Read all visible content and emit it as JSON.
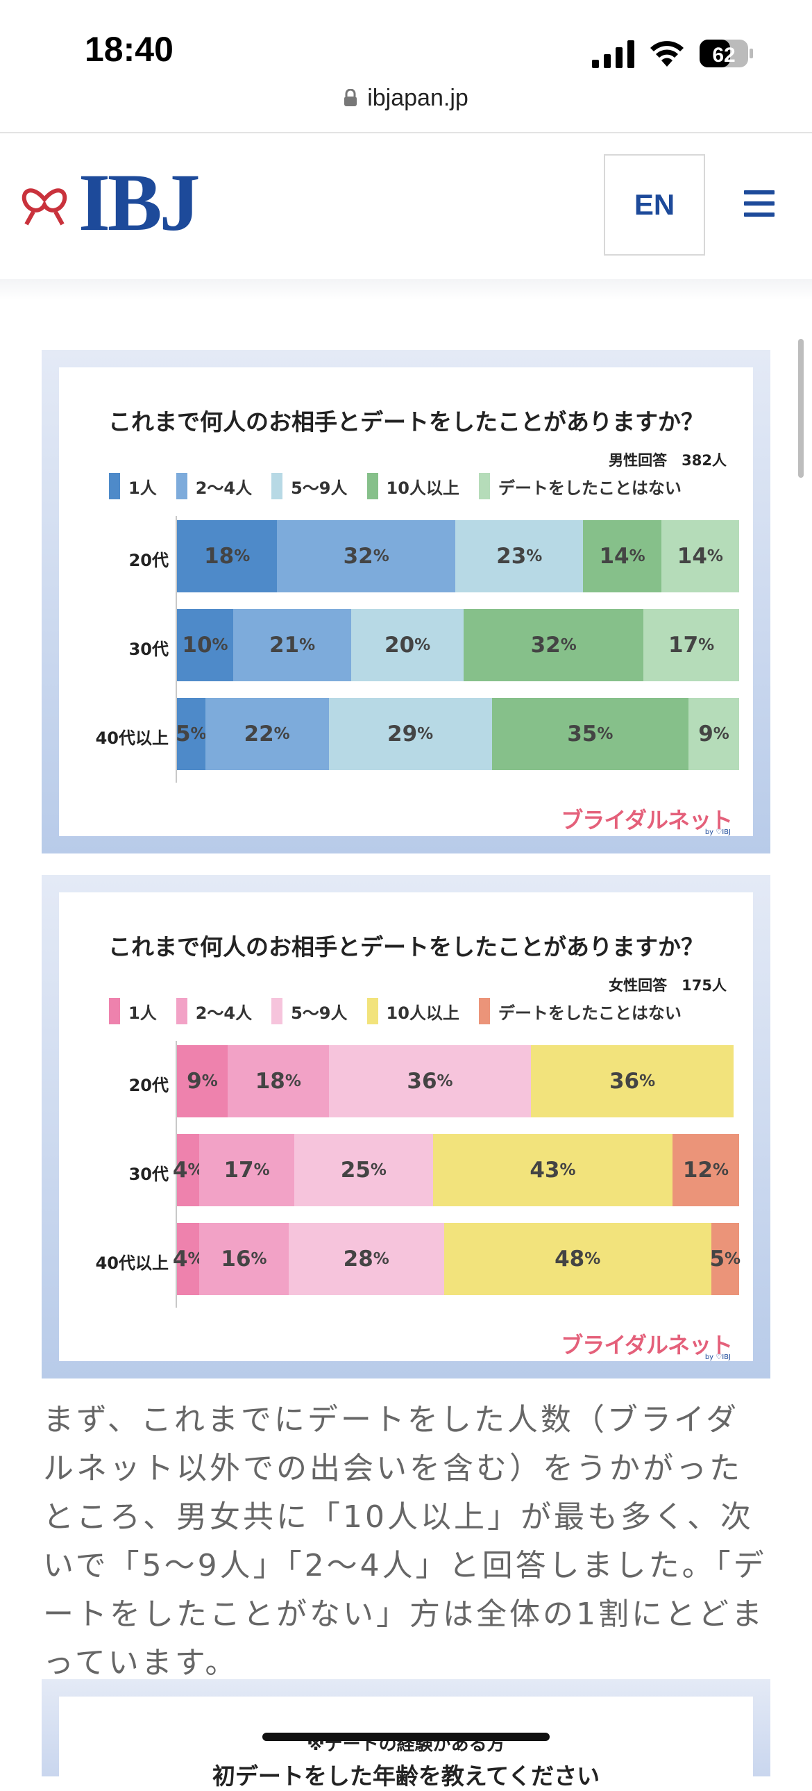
{
  "status_bar": {
    "time": "18:40",
    "battery": "62"
  },
  "browser": {
    "url": "ibjapan.jp"
  },
  "header": {
    "logo": "IBJ",
    "lang_button": "EN"
  },
  "chart_data": [
    {
      "type": "bar",
      "orientation": "horizontal",
      "stacked": true,
      "percent": true,
      "title": "これまで何人のお相手とデートをしたことがありますか？",
      "subtitle": "男性回答　382人",
      "categories": [
        "20代",
        "30代",
        "40代以上"
      ],
      "series": [
        {
          "name": "1人",
          "color": "#4e8ac9",
          "values": [
            18,
            10,
            5
          ]
        },
        {
          "name": "2～4人",
          "color": "#7dabdb",
          "values": [
            32,
            21,
            22
          ]
        },
        {
          "name": "5～9人",
          "color": "#b7d9e5",
          "values": [
            23,
            20,
            29
          ]
        },
        {
          "name": "10人以上",
          "color": "#86c08a",
          "values": [
            14,
            32,
            35
          ]
        },
        {
          "name": "デートをしたことはない",
          "color": "#b5dcb9",
          "values": [
            14,
            17,
            9
          ]
        }
      ],
      "value_suffix": "%",
      "legend": "top",
      "brand": "ブライダルネット",
      "brand_sub": "by ♡IBJ"
    },
    {
      "type": "bar",
      "orientation": "horizontal",
      "stacked": true,
      "percent": true,
      "title": "これまで何人のお相手とデートをしたことがありますか？",
      "subtitle": "女性回答　175人",
      "categories": [
        "20代",
        "30代",
        "40代以上"
      ],
      "series": [
        {
          "name": "1人",
          "color": "#ee82ad",
          "values": [
            9,
            4,
            4
          ]
        },
        {
          "name": "2～4人",
          "color": "#f2a2c6",
          "values": [
            18,
            17,
            16
          ]
        },
        {
          "name": "5～9人",
          "color": "#f6c4dc",
          "values": [
            36,
            25,
            28
          ]
        },
        {
          "name": "10人以上",
          "color": "#f2e37c",
          "values": [
            36,
            43,
            48
          ]
        },
        {
          "name": "デートをしたことはない",
          "color": "#eb9479",
          "values": [
            0,
            12,
            5
          ]
        }
      ],
      "value_suffix": "%",
      "legend": "top",
      "brand": "ブライダルネット",
      "brand_sub": "by ♡IBJ"
    }
  ],
  "article": {
    "paragraph": "まず、これまでにデートをした人数（ブライダルネット以外での出会いを含む）をうかがったところ、男女共に「10人以上」が最も多く、次いで「5～9人」「2～4人」と回答しました。「デートをしたことがない」方は全体の1割にとどまっています。"
  },
  "next_chart": {
    "note": "※デートの経験がある方",
    "title": "初デートをした年齢を教えてください"
  }
}
